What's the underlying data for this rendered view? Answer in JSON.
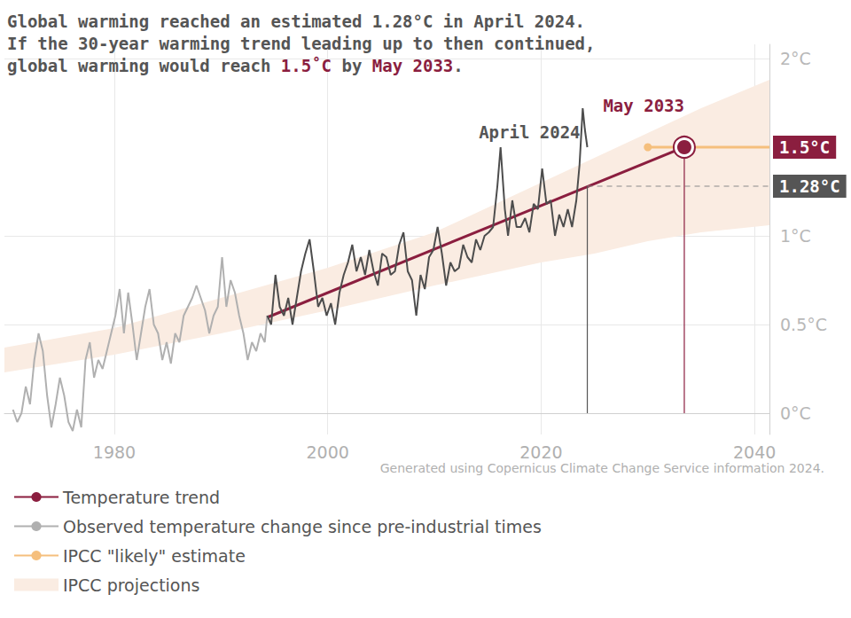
{
  "chart_data": {
    "type": "line",
    "title": [
      [
        "Global warming reached an estimated ",
        "1.28°C",
        " in ",
        "April 2024",
        "."
      ],
      [
        "If the 30-year warming trend leading up to then continued,"
      ],
      [
        "global warming would reach ",
        "1.5˚C",
        " by ",
        "May 2033",
        "."
      ]
    ],
    "source": "Generated using Copernicus Climate Change Service information 2024.",
    "xlim": [
      1969.7,
      2041.4
    ],
    "xticks": [
      1980,
      2000,
      2020,
      2040
    ],
    "ylim": [
      -0.12,
      2.08
    ],
    "yticks": [
      {
        "value": 0,
        "label": "0°C"
      },
      {
        "value": 0.5,
        "label": "0.5°C"
      },
      {
        "value": 1,
        "label": "1°C"
      },
      {
        "value": 2,
        "label": "2°C"
      }
    ],
    "grid": true,
    "legend": "bottom-left",
    "series": [
      {
        "name": "Temperature trend",
        "type": "line",
        "color": "#8b1e3f",
        "x": [
          1994.33,
          2033.42
        ],
        "values": [
          0.54,
          1.5
        ]
      },
      {
        "name": "Observed temperature change since pre-industrial times",
        "type": "line",
        "color": "#b0b0b0",
        "x": [
          1970.5,
          1970.9,
          1971.3,
          1971.7,
          1972.1,
          1972.5,
          1972.9,
          1973.3,
          1973.7,
          1974.1,
          1974.5,
          1974.9,
          1975.3,
          1975.7,
          1976.1,
          1976.5,
          1976.9,
          1977.3,
          1977.7,
          1978.1,
          1978.5,
          1978.9,
          1979.3,
          1979.7,
          1980.1,
          1980.5,
          1980.9,
          1981.3,
          1981.7,
          1982.1,
          1982.5,
          1982.9,
          1983.3,
          1983.7,
          1984.1,
          1984.5,
          1984.9,
          1985.3,
          1985.7,
          1986.1,
          1986.5,
          1986.9,
          1987.3,
          1987.7,
          1988.1,
          1988.5,
          1988.9,
          1989.3,
          1989.7,
          1990.1,
          1990.5,
          1990.9,
          1991.3,
          1991.7,
          1992.1,
          1992.5,
          1992.9,
          1993.3,
          1993.7,
          1994.1,
          1994.33
        ],
        "values": [
          0.02,
          -0.05,
          0.0,
          0.15,
          0.05,
          0.3,
          0.45,
          0.35,
          0.1,
          -0.08,
          0.05,
          0.2,
          0.1,
          -0.05,
          -0.1,
          0.02,
          -0.08,
          0.3,
          0.4,
          0.2,
          0.3,
          0.25,
          0.35,
          0.45,
          0.55,
          0.7,
          0.45,
          0.68,
          0.5,
          0.3,
          0.45,
          0.6,
          0.7,
          0.5,
          0.45,
          0.3,
          0.4,
          0.28,
          0.45,
          0.4,
          0.55,
          0.6,
          0.65,
          0.72,
          0.65,
          0.58,
          0.45,
          0.55,
          0.6,
          0.88,
          0.6,
          0.75,
          0.68,
          0.55,
          0.45,
          0.3,
          0.4,
          0.35,
          0.45,
          0.4,
          0.55
        ]
      },
      {
        "name": "Observed temperature change since pre-industrial times",
        "type": "line",
        "color": "#4d4d4d",
        "x": [
          1994.33,
          1994.7,
          1995.1,
          1995.5,
          1995.9,
          1996.3,
          1996.7,
          1997.1,
          1997.5,
          1997.9,
          1998.3,
          1998.7,
          1999.1,
          1999.5,
          1999.9,
          2000.3,
          2000.7,
          2001.1,
          2001.5,
          2001.9,
          2002.3,
          2002.7,
          2003.1,
          2003.5,
          2003.9,
          2004.3,
          2004.7,
          2005.1,
          2005.5,
          2005.9,
          2006.3,
          2006.7,
          2007.1,
          2007.5,
          2007.9,
          2008.3,
          2008.7,
          2009.1,
          2009.5,
          2009.9,
          2010.3,
          2010.7,
          2011.1,
          2011.5,
          2011.9,
          2012.3,
          2012.7,
          2013.1,
          2013.5,
          2013.9,
          2014.3,
          2014.7,
          2015.1,
          2015.5,
          2015.9,
          2016.2,
          2016.6,
          2016.9,
          2017.3,
          2017.7,
          2018.1,
          2018.5,
          2018.9,
          2019.3,
          2019.7,
          2020.1,
          2020.5,
          2020.9,
          2021.3,
          2021.7,
          2022.1,
          2022.5,
          2022.9,
          2023.3,
          2023.6,
          2023.9,
          2024.1,
          2024.33
        ],
        "values": [
          0.55,
          0.5,
          0.78,
          0.6,
          0.55,
          0.65,
          0.5,
          0.65,
          0.8,
          0.9,
          0.98,
          0.8,
          0.6,
          0.65,
          0.55,
          0.62,
          0.5,
          0.68,
          0.78,
          0.85,
          0.95,
          0.8,
          0.88,
          0.78,
          0.92,
          0.8,
          0.72,
          0.9,
          0.88,
          0.78,
          0.8,
          0.95,
          1.02,
          0.8,
          0.75,
          0.55,
          0.78,
          0.7,
          0.88,
          0.92,
          1.05,
          0.9,
          0.72,
          0.85,
          0.8,
          0.82,
          0.95,
          0.88,
          0.85,
          0.98,
          0.92,
          1.0,
          1.02,
          1.05,
          1.28,
          1.5,
          1.15,
          1.0,
          1.2,
          1.05,
          1.05,
          1.1,
          1.02,
          1.18,
          1.15,
          1.38,
          1.18,
          1.2,
          1.0,
          1.12,
          1.05,
          1.15,
          1.05,
          1.2,
          1.4,
          1.72,
          1.6,
          1.5
        ]
      },
      {
        "name": "IPCC \"likely\" estimate",
        "type": "line",
        "color": "#f5bf7d",
        "marker": "circle",
        "x": [
          2030.0,
          2041.4
        ],
        "values": [
          1.5,
          1.5
        ]
      },
      {
        "name": "IPCC projections",
        "type": "band",
        "color": "#faece2",
        "x": [
          1969.7,
          1980,
          1990,
          2000,
          2010,
          2020,
          2025,
          2030,
          2035,
          2041.4
        ],
        "low": [
          0.23,
          0.33,
          0.45,
          0.58,
          0.72,
          0.85,
          0.9,
          0.97,
          1.02,
          1.06
        ],
        "high": [
          0.37,
          0.48,
          0.65,
          0.82,
          1.02,
          1.3,
          1.44,
          1.58,
          1.72,
          1.88
        ]
      }
    ],
    "annotations": [
      {
        "text": "April 2024",
        "x": 2024.33,
        "y": 1.28,
        "color": "#555555"
      },
      {
        "text": "May 2033",
        "x": 2033.42,
        "y": 1.5,
        "color": "#8b1e3f"
      }
    ],
    "reference_lines": [
      {
        "label": "1.5°C",
        "value": 1.5,
        "color": "#8b1e3f"
      },
      {
        "label": "1.28°C",
        "value": 1.28,
        "color": "#555555",
        "line_style": "dashed"
      }
    ]
  }
}
